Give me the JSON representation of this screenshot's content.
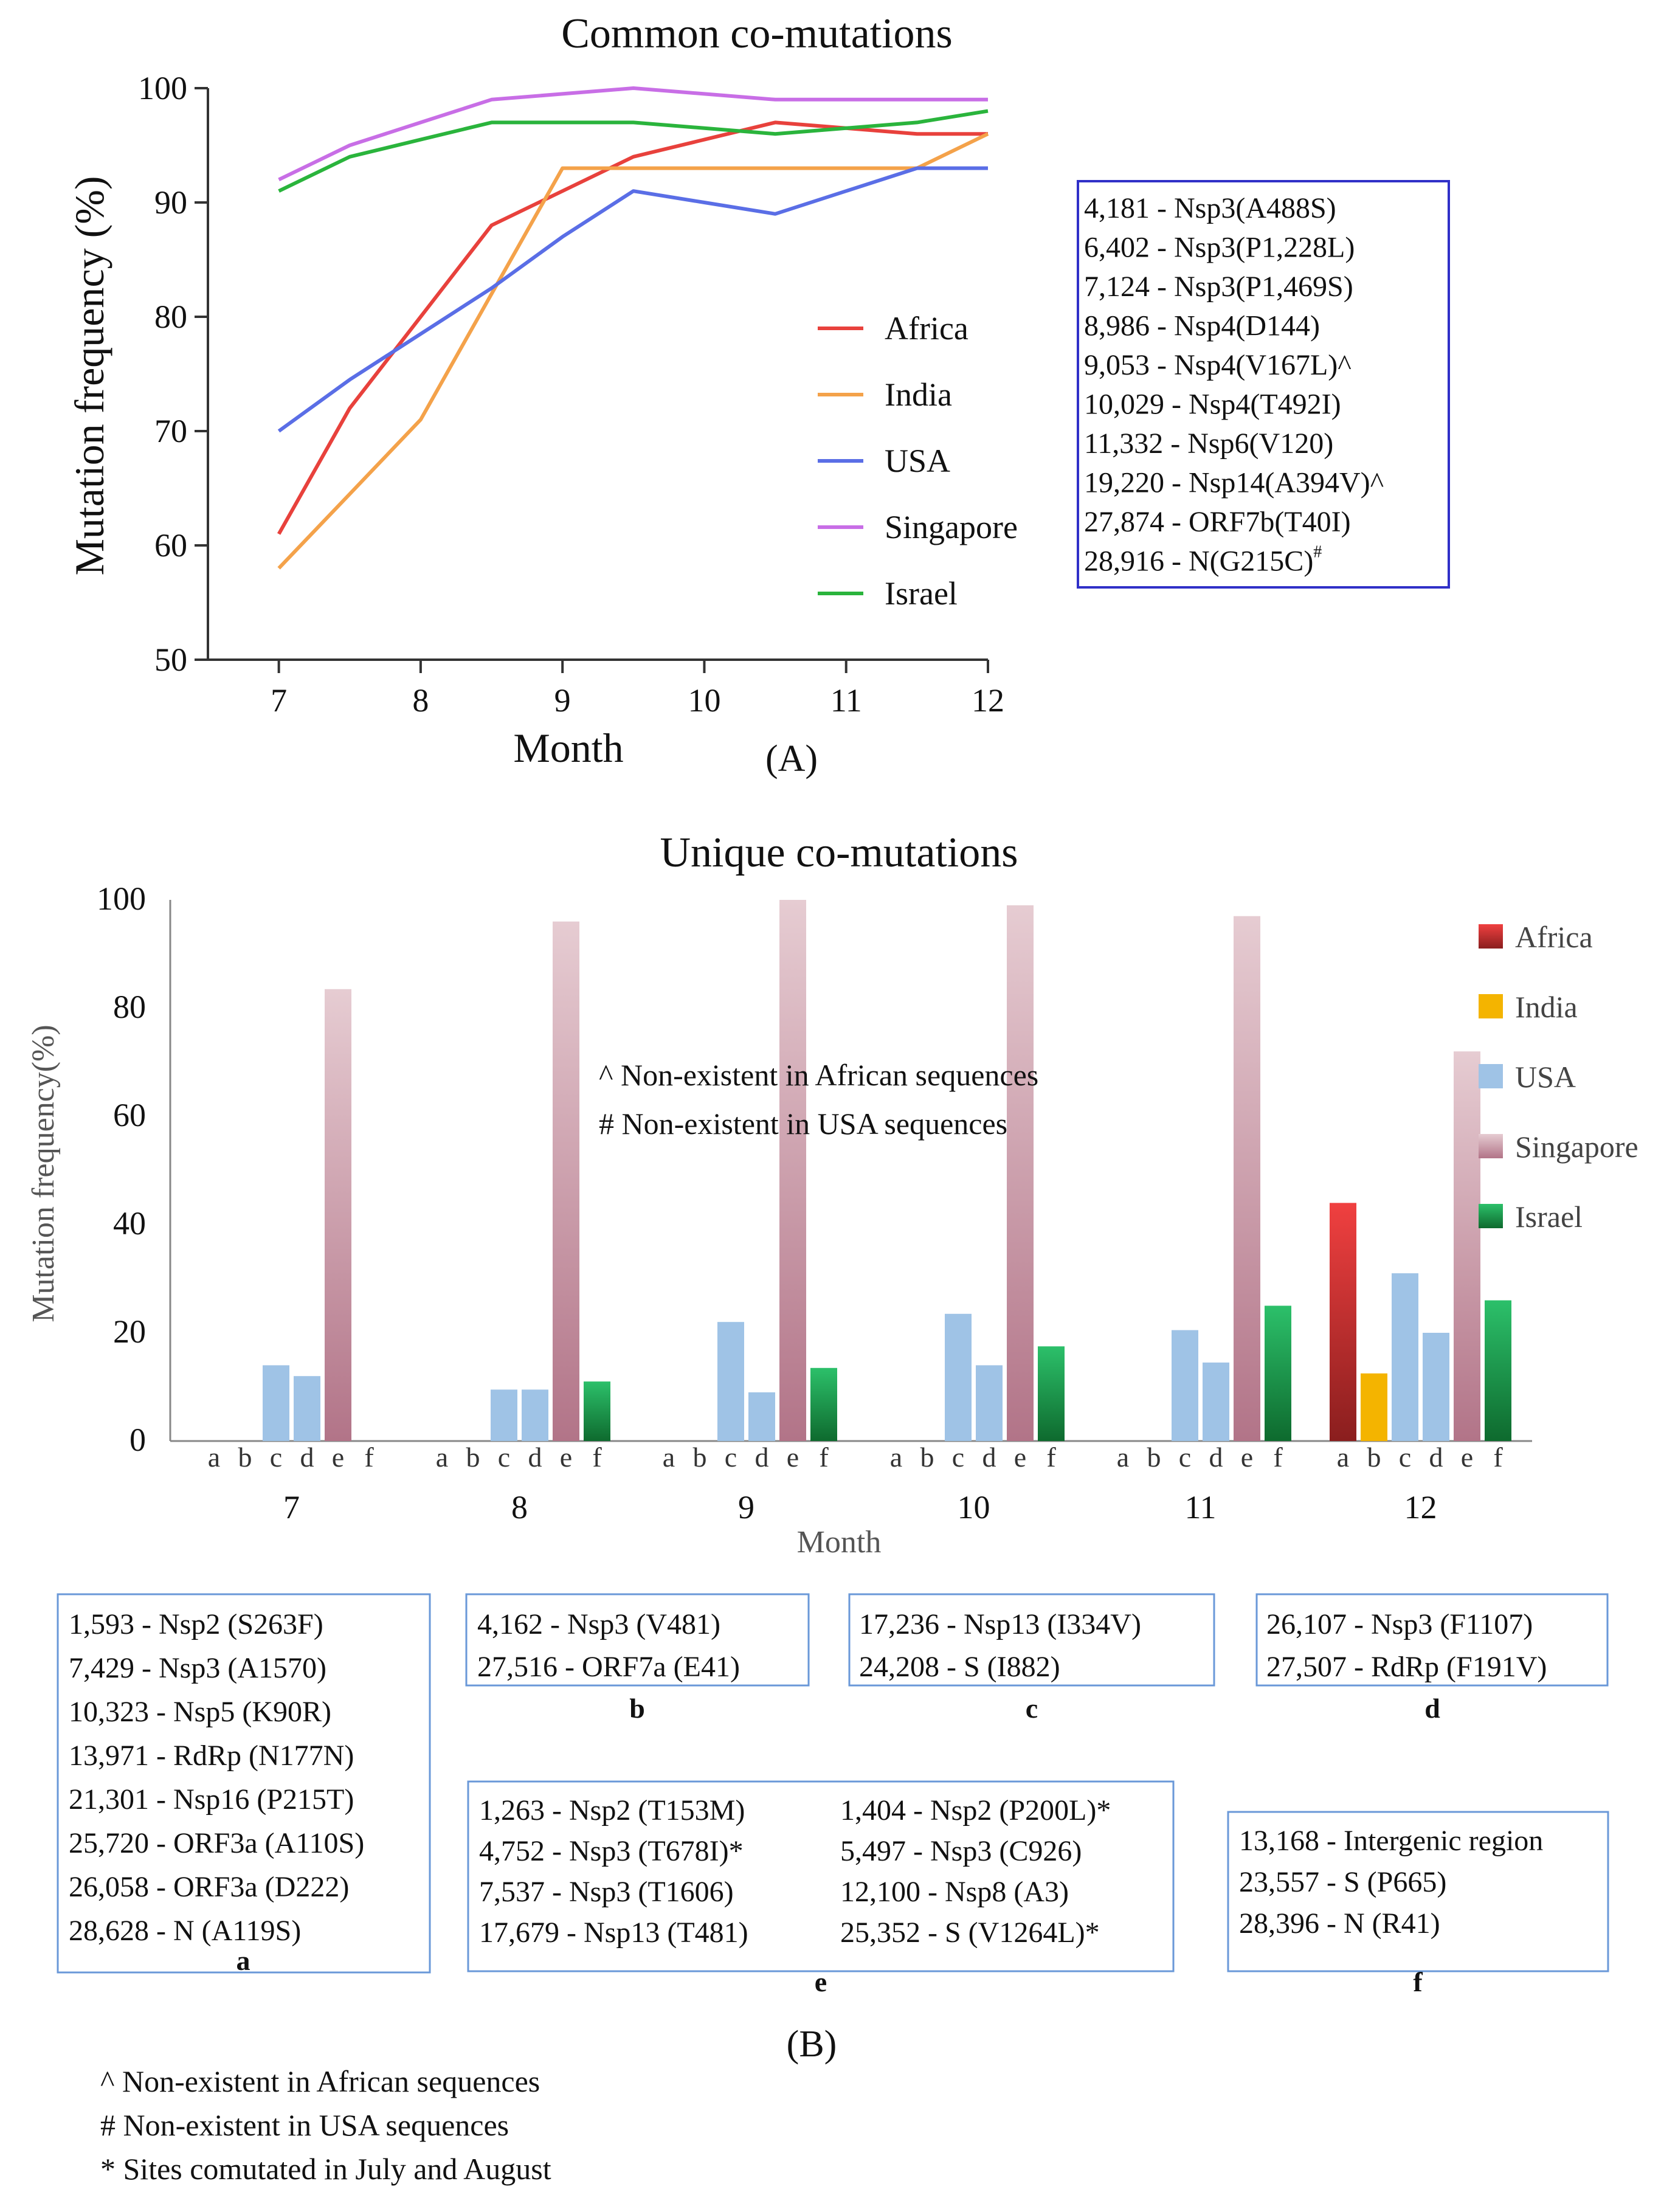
{
  "colors": {
    "Africa": "#e8413c",
    "India": "#f4a24a",
    "USA": "#5a6ee6",
    "Singapore": "#c86ee6",
    "Israel": "#2ab43c",
    "bar_Africa": "#d23030",
    "bar_India": "#f4b400",
    "bar_USA": "#9fc3e6",
    "bar_Singapore": "#c88e9e",
    "bar_Israel": "#1a9a46",
    "box_border_a": "#3030c8",
    "box_border_b": "#6a98d8"
  },
  "chart_data": [
    {
      "type": "line",
      "title": "Common co-mutations",
      "xlabel": "Month",
      "ylabel": "Mutation frequency (%)",
      "panel_label": "(A)",
      "x_ticks": [
        "7",
        "8",
        "9",
        "10",
        "11",
        "12"
      ],
      "y_ticks": [
        "50",
        "60",
        "70",
        "80",
        "90",
        "100"
      ],
      "xlim": [
        6.5,
        12
      ],
      "ylim": [
        50,
        100
      ],
      "series": [
        {
          "name": "Africa",
          "x": [
            7,
            7.5,
            8,
            8.5,
            9,
            9.5,
            10,
            10.5,
            11,
            11.5,
            12
          ],
          "values": [
            61,
            72,
            80,
            88,
            91,
            94,
            95.5,
            97,
            96.5,
            96,
            96
          ]
        },
        {
          "name": "India",
          "x": [
            7,
            7.5,
            8,
            8.5,
            9,
            9.5,
            10,
            10.5,
            11,
            11.5,
            12
          ],
          "values": [
            58,
            64.5,
            71,
            82,
            93,
            93,
            93,
            93,
            93,
            93,
            96
          ]
        },
        {
          "name": "USA",
          "x": [
            7,
            7.5,
            8,
            8.5,
            9,
            9.5,
            10,
            10.5,
            11,
            11.5,
            12
          ],
          "values": [
            70,
            74.5,
            78.5,
            82.5,
            87,
            91,
            90,
            89,
            91,
            93,
            93
          ]
        },
        {
          "name": "Singapore",
          "x": [
            7,
            7.5,
            8,
            8.5,
            9,
            9.5,
            10,
            10.5,
            11,
            11.5,
            12
          ],
          "values": [
            92,
            95,
            97,
            99,
            99.5,
            100,
            99.5,
            99,
            99,
            99,
            99
          ]
        },
        {
          "name": "Israel",
          "x": [
            7,
            7.5,
            8,
            8.5,
            9,
            9.5,
            10,
            10.5,
            11,
            11.5,
            12
          ],
          "values": [
            91,
            94,
            95.5,
            97,
            97,
            97,
            96.5,
            96,
            96.5,
            97,
            98
          ]
        }
      ],
      "mutation_list": [
        {
          "text": "4,181 - Nsp3(A488S)",
          "mark": ""
        },
        {
          "text": "6,402 - Nsp3(P1,228L)",
          "mark": ""
        },
        {
          "text": "7,124 - Nsp3(P1,469S)",
          "mark": ""
        },
        {
          "text": "8,986 - Nsp4(D144)",
          "mark": ""
        },
        {
          "text": "9,053 - Nsp4(V167L)^",
          "mark": ""
        },
        {
          "text": "10,029 - Nsp4(T492I)",
          "mark": ""
        },
        {
          "text": "11,332 - Nsp6(V120)",
          "mark": ""
        },
        {
          "text": "19,220 - Nsp14(A394V)^",
          "mark": ""
        },
        {
          "text": "27,874 - ORF7b(T40I)",
          "mark": ""
        },
        {
          "text": "28,916 - N(G215C)",
          "mark": "#"
        }
      ]
    },
    {
      "type": "bar",
      "title": "Unique co-mutations",
      "xlabel": "Month",
      "ylabel": "Mutation frequency(%)",
      "panel_label": "(B)",
      "months": [
        "7",
        "8",
        "9",
        "10",
        "11",
        "12"
      ],
      "sub_categories": [
        "a",
        "b",
        "c",
        "d",
        "e",
        "f"
      ],
      "y_ticks": [
        "0",
        "20",
        "40",
        "60",
        "80",
        "100"
      ],
      "ylim": [
        0,
        100
      ],
      "legend": [
        "Africa",
        "India",
        "USA",
        "Singapore",
        "Israel"
      ],
      "annotations": [
        "^ Non-existent in African sequences",
        "# Non-existent in USA sequences"
      ],
      "series": [
        {
          "name": "Africa",
          "slot": 0,
          "values": [
            0,
            0,
            0,
            0,
            0,
            44
          ]
        },
        {
          "name": "India",
          "slot": 1,
          "values": [
            0,
            0,
            0,
            0,
            0,
            12.5
          ]
        },
        {
          "name": "USA",
          "slot": 2,
          "values": [
            14,
            9.5,
            22,
            23.5,
            20.5,
            31
          ]
        },
        {
          "name": "USA",
          "slot": 3,
          "values": [
            12,
            9.5,
            9,
            14,
            14.5,
            20
          ]
        },
        {
          "name": "Singapore",
          "slot": 4,
          "values": [
            83.5,
            96,
            100,
            99,
            97,
            72
          ]
        },
        {
          "name": "Israel",
          "slot": 5,
          "values": [
            0,
            11,
            13.5,
            17.5,
            25,
            26
          ]
        }
      ]
    }
  ],
  "mutation_boxes": {
    "a": {
      "label": "a",
      "items": [
        "1,593 - Nsp2 (S263F)",
        "7,429 - Nsp3 (A1570)",
        "10,323 - Nsp5 (K90R)",
        "13,971 - RdRp (N177N)",
        "21,301 - Nsp16 (P215T)",
        "25,720 - ORF3a (A110S)",
        "26,058 - ORF3a (D222)",
        "28,628 - N (A119S)"
      ]
    },
    "b": {
      "label": "b",
      "items": [
        "4,162 - Nsp3 (V481)",
        "27,516 - ORF7a (E41)"
      ]
    },
    "c": {
      "label": "c",
      "items": [
        "17,236 - Nsp13 (I334V)",
        "24,208 - S (I882)"
      ]
    },
    "d": {
      "label": "d",
      "items": [
        "26,107 - Nsp3 (F1107)",
        "27,507 - RdRp (F191V)"
      ]
    },
    "e": {
      "label": "e",
      "left": [
        "1,263 - Nsp2 (T153M)",
        "4,752 - Nsp3 (T678I)*",
        "7,537 - Nsp3 (T1606)",
        "17,679 - Nsp13 (T481)"
      ],
      "right": [
        "1,404 - Nsp2 (P200L)*",
        "5,497 - Nsp3 (C926)",
        "12,100 - Nsp8 (A3)",
        "25,352 - S (V1264L)*"
      ]
    },
    "f": {
      "label": "f",
      "items": [
        "13,168 - Intergenic region",
        "23,557 - S (P665)",
        "28,396 - N (R41)"
      ]
    }
  },
  "footnotes": [
    "^ Non-existent in African sequences",
    "# Non-existent in USA sequences",
    "* Sites comutated in July and August"
  ]
}
